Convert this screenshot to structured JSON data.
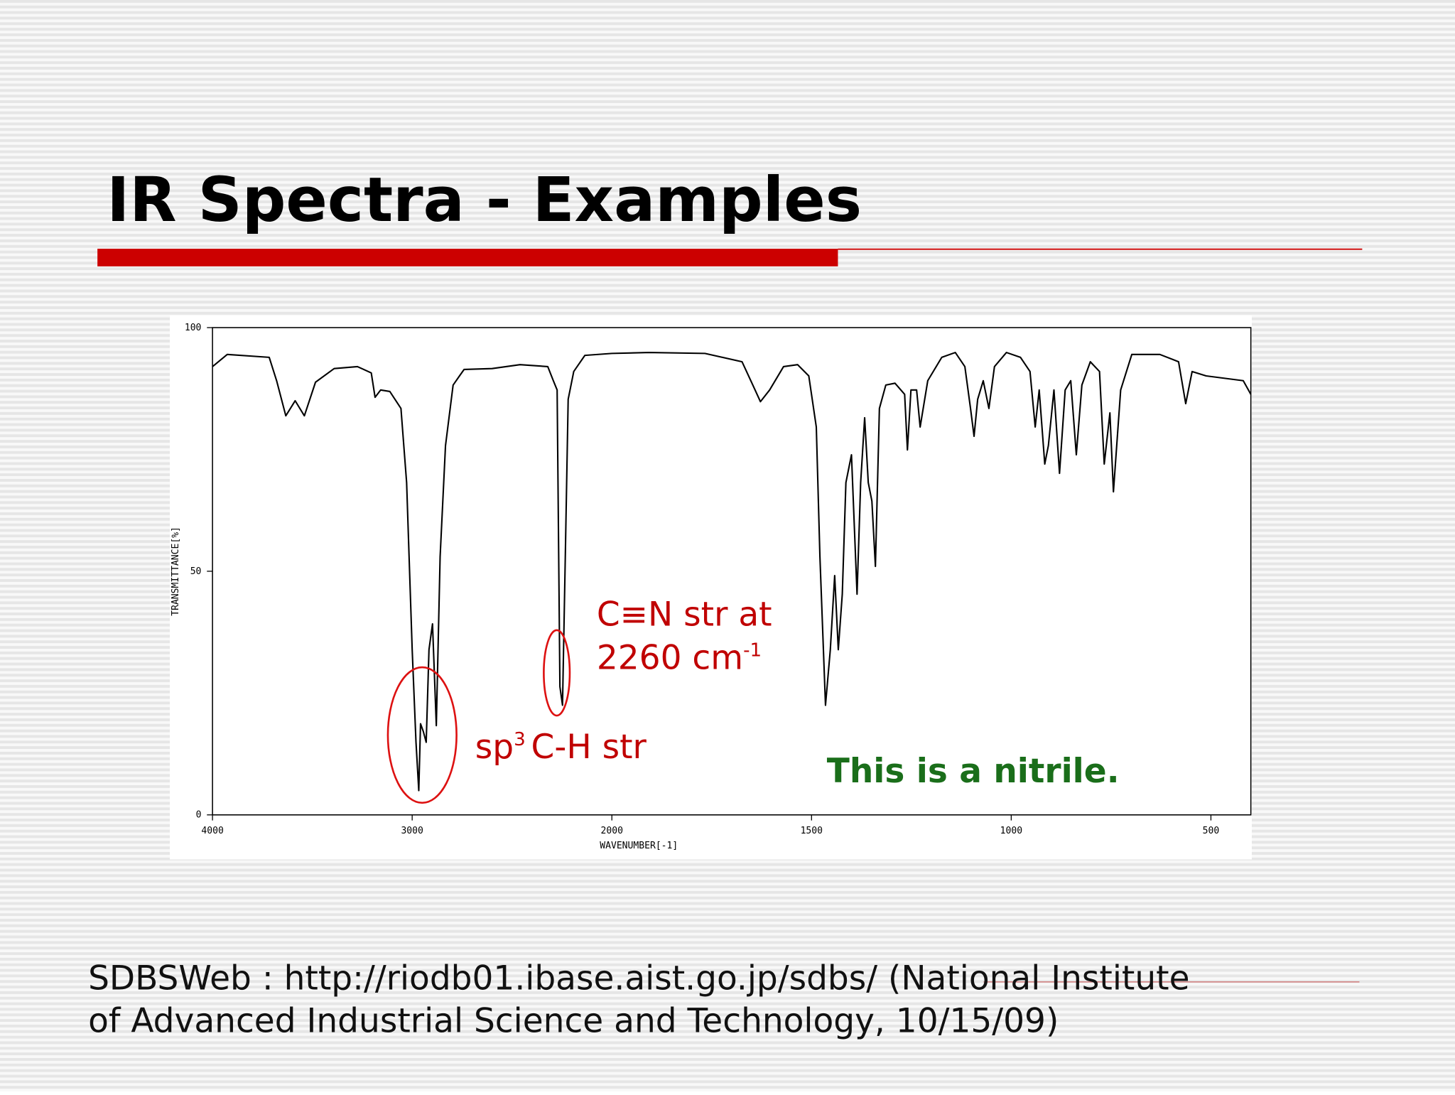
{
  "slide": {
    "title": "IR Spectra - Examples",
    "citation": [
      "SDBSWeb : http://riodb01.ibase.aist.go.jp/sdbs/ (National Institute",
      "of Advanced Industrial Science and Technology, 10/15/09)"
    ]
  },
  "chart_data": {
    "type": "line",
    "color": "#000000",
    "x_label": "WAVENUMBER[-1]",
    "y_label": "TRANSMITTANCE[%]",
    "xlim": [
      4000,
      400
    ],
    "xticks": [
      4000,
      3000,
      2000,
      1500,
      1000,
      500
    ],
    "ylim": [
      0,
      100
    ],
    "yticks": [
      0,
      50,
      100
    ],
    "annotations": [
      "C≡N str at",
      "2260 cm",
      "-1",
      "sp",
      "3",
      "C-H str",
      "This is a nitrile."
    ],
    "x": [
      4000,
      3926,
      3716,
      3679,
      3633,
      3586,
      3540,
      3484,
      3391,
      3274,
      3205,
      3186,
      3158,
      3112,
      3056,
      3028,
      3000,
      2981,
      2967,
      2958,
      2944,
      2930,
      2916,
      2898,
      2879,
      2860,
      2833,
      2795,
      2763,
      2740,
      2600,
      2460,
      2321,
      2293,
      2274,
      2260,
      2247,
      2233,
      2219,
      2191,
      2135,
      2000,
      1907,
      1767,
      1674,
      1647,
      1628,
      1605,
      1570,
      1535,
      1507,
      1488,
      1479,
      1465,
      1453,
      1442,
      1433,
      1423,
      1414,
      1400,
      1386,
      1377,
      1367,
      1358,
      1349,
      1340,
      1330,
      1314,
      1291,
      1267,
      1260,
      1251,
      1237,
      1228,
      1209,
      1174,
      1140,
      1116,
      1102,
      1093,
      1084,
      1070,
      1056,
      1042,
      1012,
      977,
      953,
      940,
      930,
      916,
      907,
      893,
      879,
      865,
      851,
      837,
      823,
      802,
      779,
      767,
      753,
      744,
      726,
      698,
      628,
      581,
      563,
      547,
      512,
      419,
      400
    ],
    "values": [
      92,
      94.5,
      93.9,
      89.1,
      81.9,
      85,
      81.9,
      88.8,
      91.6,
      92,
      90.7,
      85.7,
      87.2,
      86.9,
      83.4,
      68.2,
      33.9,
      14.9,
      5,
      18.7,
      17.1,
      14.9,
      33.9,
      39.2,
      18.3,
      53,
      75.8,
      88.2,
      90.1,
      91.4,
      91.6,
      92.4,
      92,
      89.1,
      87.2,
      26.3,
      22.5,
      53,
      85.3,
      91,
      94.3,
      94.7,
      94.9,
      94.7,
      93,
      88.2,
      84.8,
      87.2,
      92,
      92.4,
      90.1,
      79.6,
      53,
      22.5,
      33.9,
      49.1,
      33.9,
      45.3,
      68.2,
      73.9,
      45.3,
      68.2,
      81.5,
      68.2,
      64.4,
      51,
      83.4,
      88.2,
      88.6,
      86.3,
      74.9,
      87.2,
      87.2,
      79.6,
      89.1,
      93.9,
      94.9,
      92,
      83.4,
      77.7,
      85.3,
      89.1,
      83.4,
      92,
      94.9,
      93.9,
      91,
      79.6,
      87.2,
      72,
      75.8,
      87.2,
      70.1,
      87.2,
      89.1,
      73.9,
      88.2,
      93,
      91,
      72,
      82.5,
      66.3,
      87.2,
      94.5,
      94.5,
      93,
      84.4,
      91,
      90.1,
      89.1,
      86.3
    ]
  }
}
